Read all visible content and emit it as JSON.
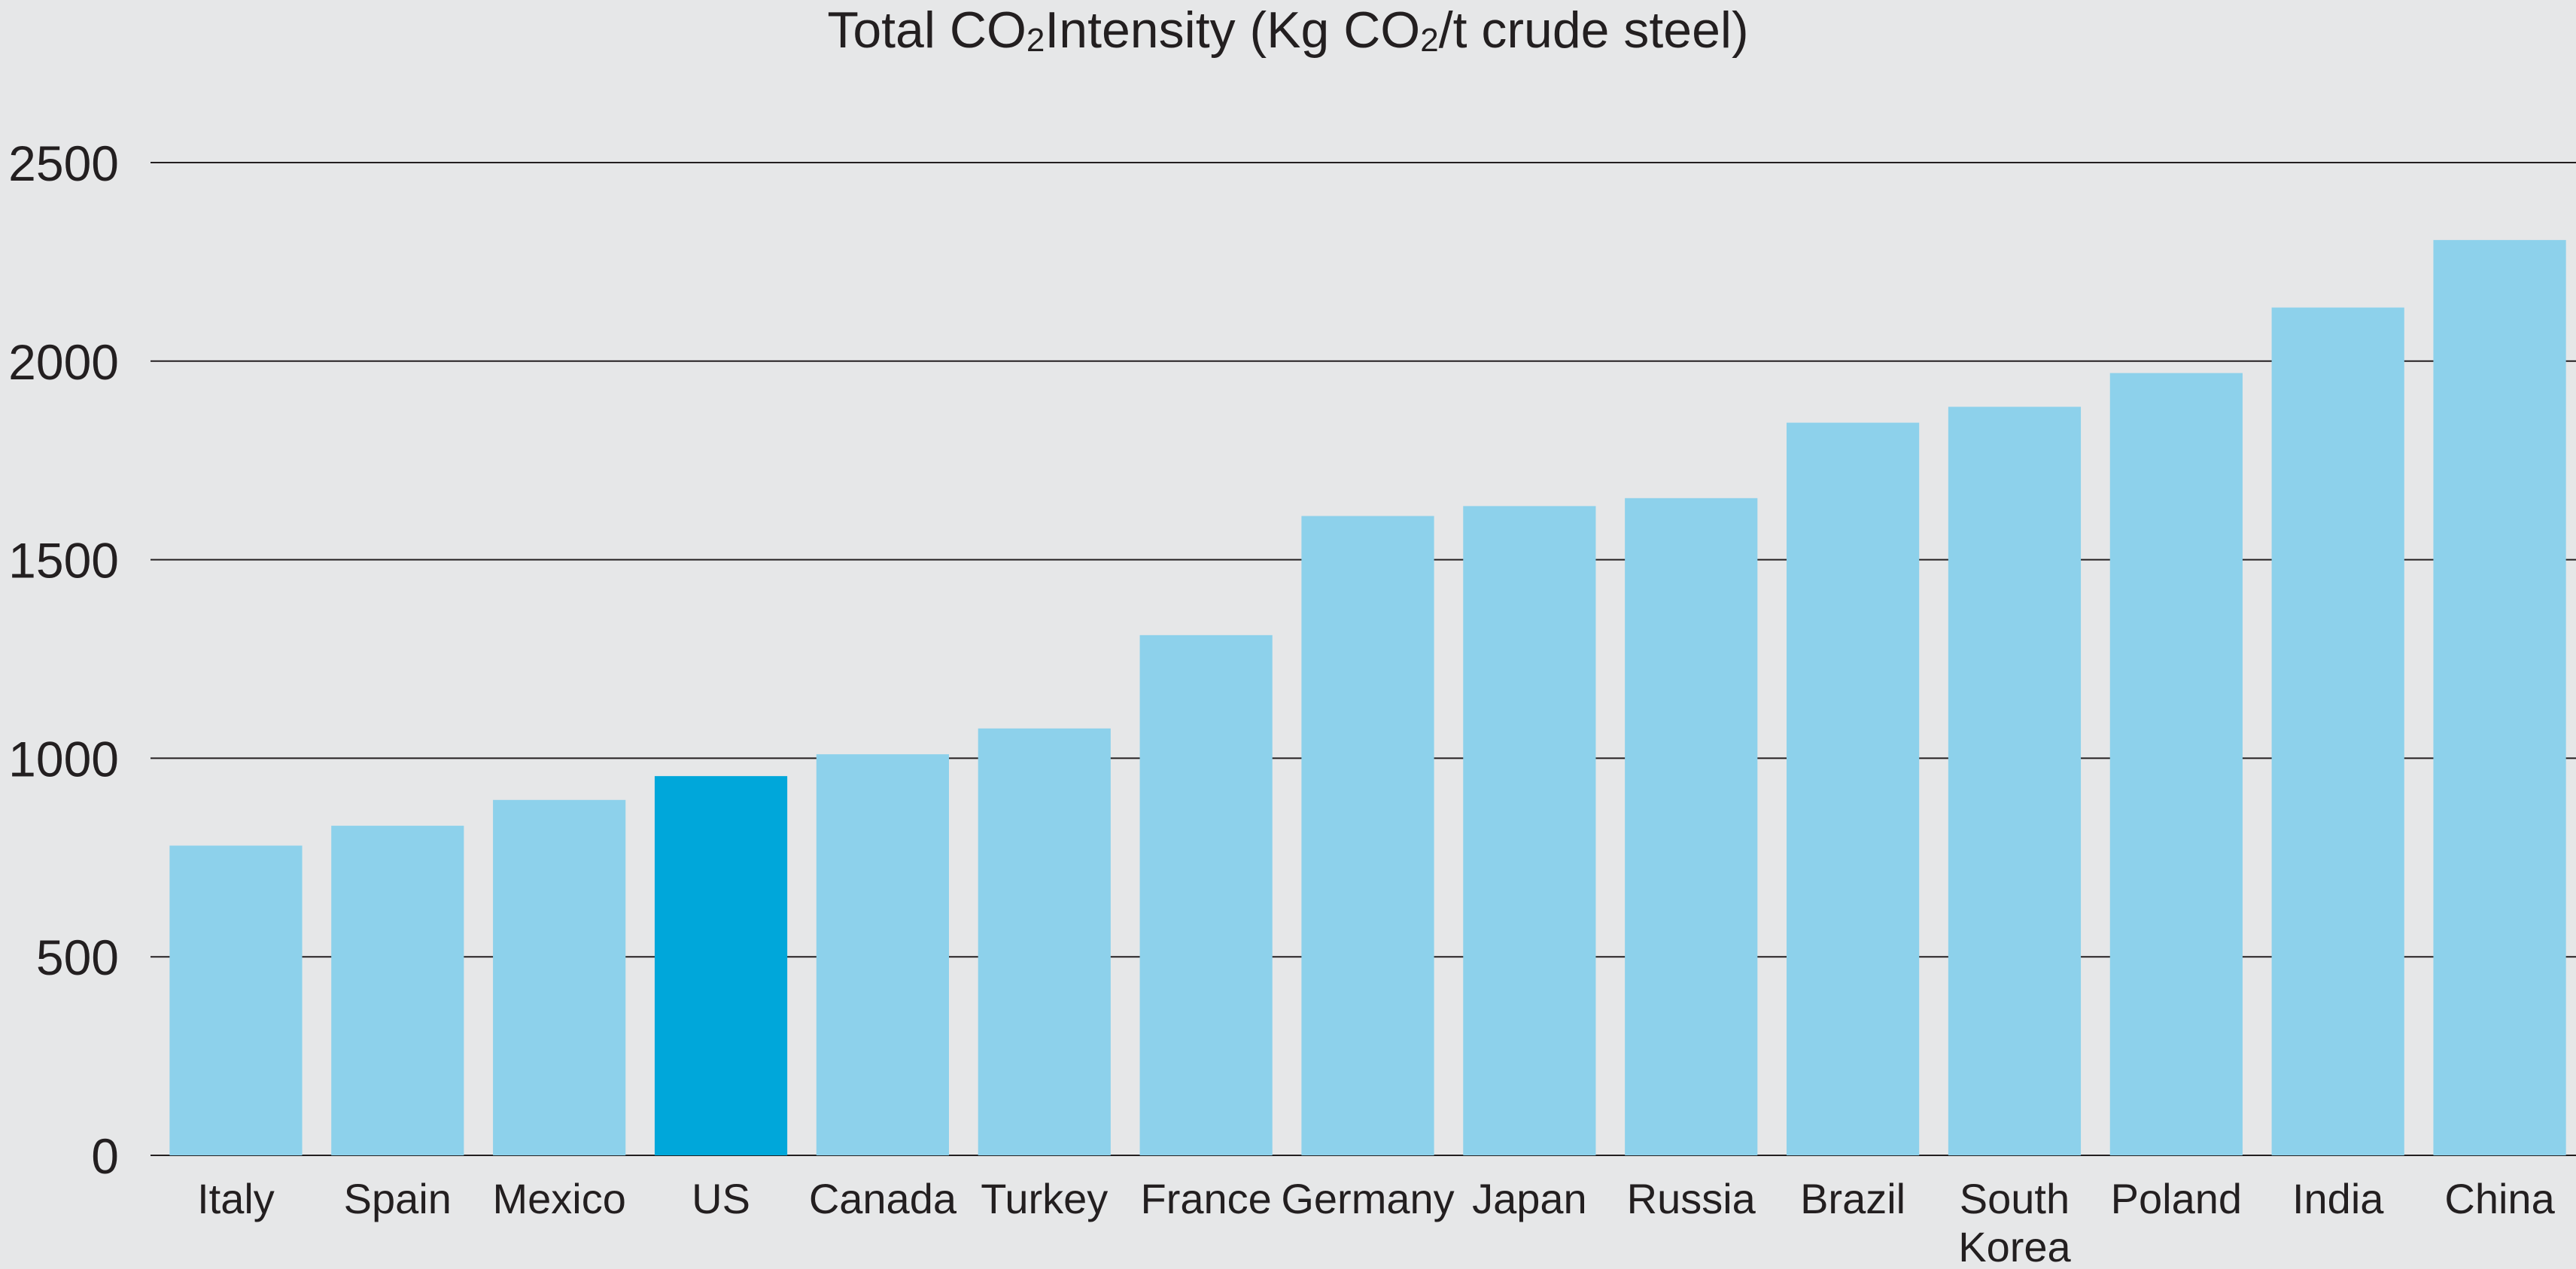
{
  "chart_data": {
    "type": "bar",
    "title_parts": {
      "part1": "Total CO",
      "sub1": "2",
      "part2": " Intensity (Kg CO",
      "sub2": "2",
      "part3": "/t crude steel)"
    },
    "categories": [
      "Italy",
      "Spain",
      "Mexico",
      "US",
      "Canada",
      "Turkey",
      "France",
      "Germany",
      "Japan",
      "Russia",
      "Brazil",
      "South Korea",
      "Poland",
      "India",
      "China"
    ],
    "category_lines": [
      [
        "Italy"
      ],
      [
        "Spain"
      ],
      [
        "Mexico"
      ],
      [
        "US"
      ],
      [
        "Canada"
      ],
      [
        "Turkey"
      ],
      [
        "France"
      ],
      [
        "Germany"
      ],
      [
        "Japan"
      ],
      [
        "Russia"
      ],
      [
        "Brazil"
      ],
      [
        "South",
        "Korea"
      ],
      [
        "Poland"
      ],
      [
        "India"
      ],
      [
        "China"
      ]
    ],
    "values": [
      780,
      830,
      895,
      955,
      1010,
      1075,
      1310,
      1610,
      1635,
      1655,
      1845,
      1885,
      1970,
      2135,
      2305
    ],
    "ylim": [
      0,
      2500
    ],
    "yticks": [
      "0",
      "500",
      "1000",
      "1500",
      "2000",
      "2500"
    ],
    "grid": true,
    "colors": {
      "bar": "#8dd1eb",
      "highlight": "#00a7da",
      "grid": "#231f20",
      "background": "#e6e7e8"
    },
    "highlight_category": "US"
  }
}
